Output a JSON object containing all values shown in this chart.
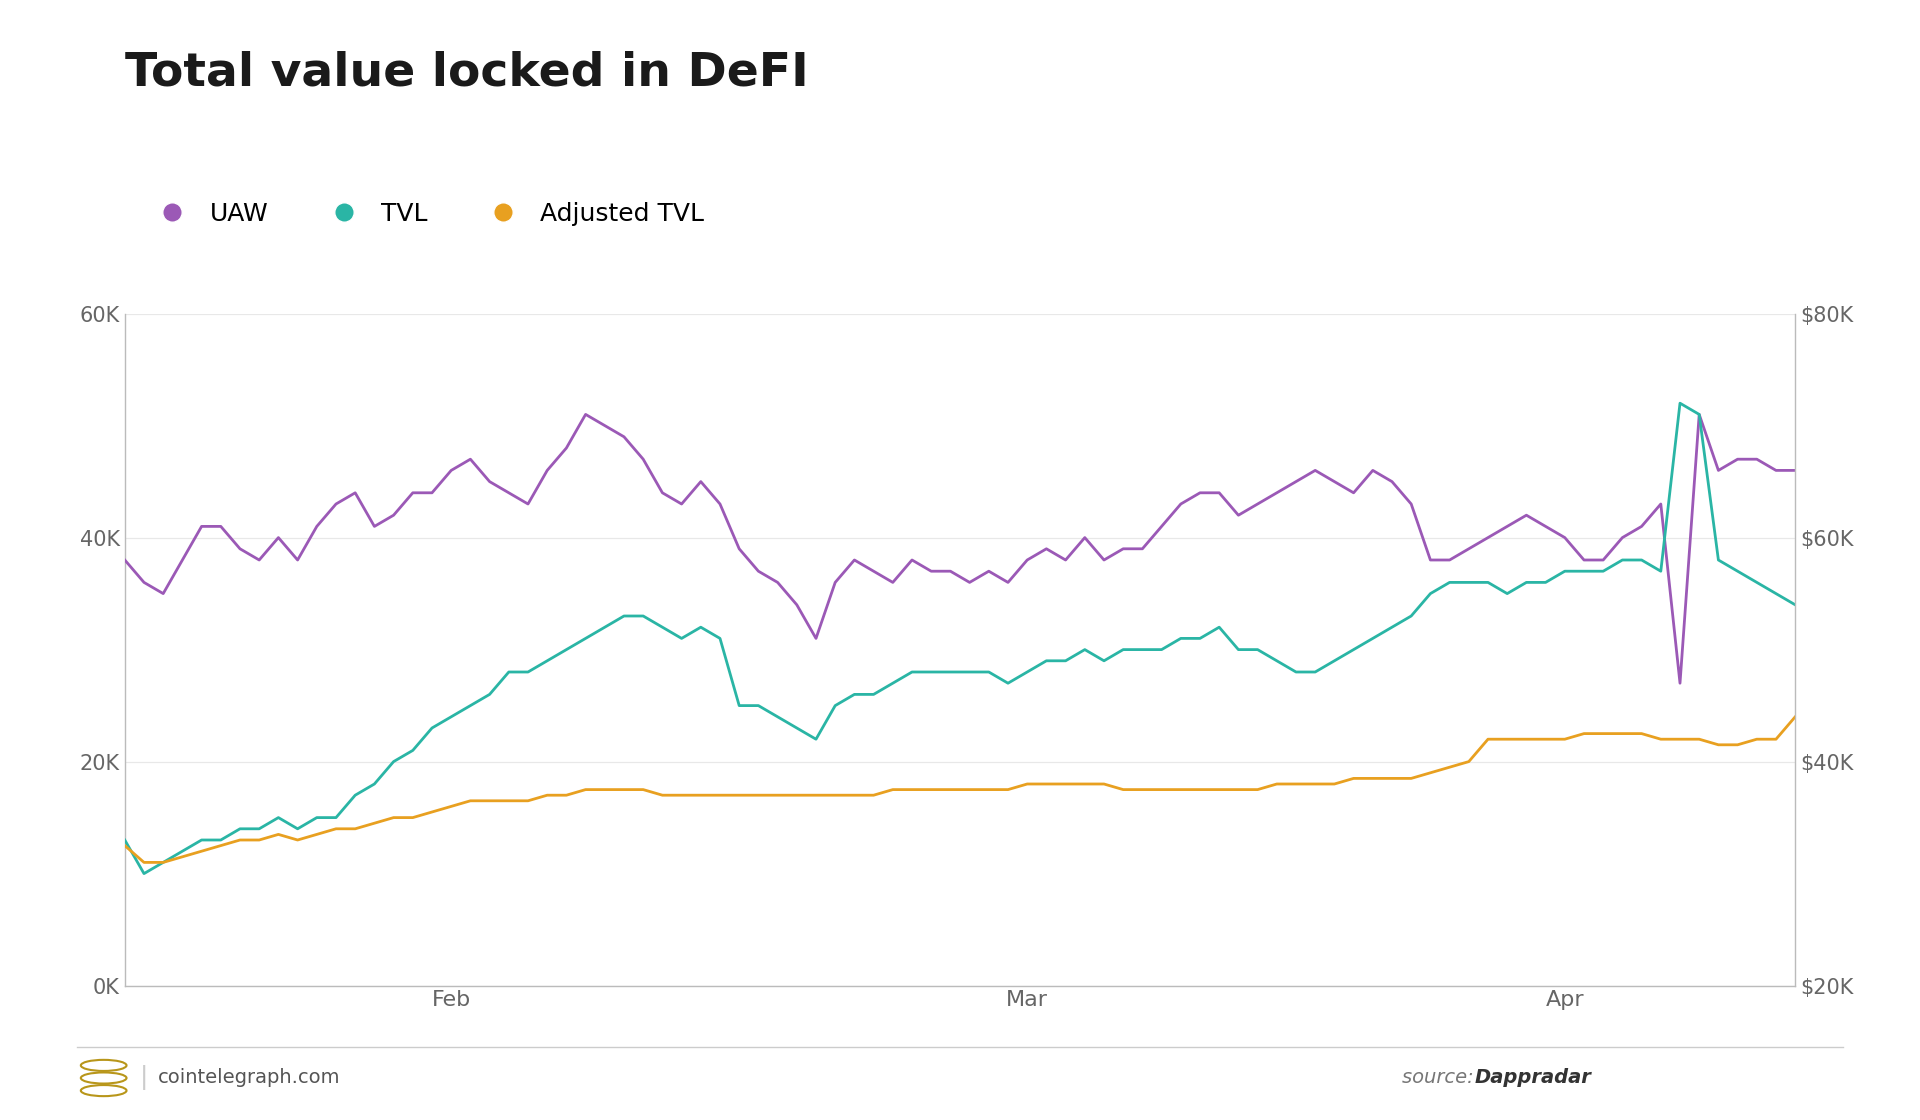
{
  "title": "Total value locked in DeFI",
  "title_fontsize": 34,
  "background_color": "#ffffff",
  "legend_labels": [
    "UAW",
    "TVL",
    "Adjusted TVL"
  ],
  "legend_colors": [
    "#9b59b6",
    "#2ab5a5",
    "#e8a020"
  ],
  "uaw_color": "#9b59b6",
  "tvl_color": "#2ab5a5",
  "adj_tvl_color": "#e8a020",
  "line_width": 2.0,
  "ylim_left": [
    0,
    60000
  ],
  "ylim_right": [
    20000,
    80000
  ],
  "yticks_left": [
    0,
    20000,
    40000,
    60000
  ],
  "ytick_labels_left": [
    "0K",
    "20K",
    "40K",
    "60K"
  ],
  "yticks_right": [
    20000,
    40000,
    60000,
    80000
  ],
  "ytick_labels_right": [
    "$20K",
    "$40K",
    "$60K",
    "$80K"
  ],
  "source_bold": "Dappradar",
  "footer_left": "cointelegraph.com",
  "x_tick_positions": [
    17,
    47,
    75
  ],
  "x_tick_labels": [
    "Feb",
    "Mar",
    "Apr"
  ],
  "uaw": [
    38000,
    36000,
    35000,
    38000,
    41000,
    41000,
    39000,
    38000,
    40000,
    38000,
    41000,
    43000,
    44000,
    41000,
    42000,
    44000,
    44000,
    46000,
    47000,
    45000,
    44000,
    43000,
    46000,
    48000,
    51000,
    50000,
    49000,
    47000,
    44000,
    43000,
    45000,
    43000,
    39000,
    37000,
    36000,
    34000,
    31000,
    36000,
    38000,
    37000,
    36000,
    38000,
    37000,
    37000,
    36000,
    37000,
    36000,
    38000,
    39000,
    38000,
    40000,
    38000,
    39000,
    39000,
    41000,
    43000,
    44000,
    44000,
    42000,
    43000,
    44000,
    45000,
    46000,
    45000,
    44000,
    46000,
    45000,
    43000,
    38000,
    38000,
    39000,
    40000,
    41000,
    42000,
    41000,
    40000,
    38000,
    38000,
    40000,
    41000,
    43000,
    27000,
    51000,
    46000,
    47000,
    47000,
    46000,
    46000
  ],
  "tvl": [
    13000,
    10000,
    11000,
    12000,
    13000,
    13000,
    14000,
    14000,
    15000,
    14000,
    15000,
    15000,
    17000,
    18000,
    20000,
    21000,
    23000,
    24000,
    25000,
    26000,
    28000,
    28000,
    29000,
    30000,
    31000,
    32000,
    33000,
    33000,
    32000,
    31000,
    32000,
    31000,
    25000,
    25000,
    24000,
    23000,
    22000,
    25000,
    26000,
    26000,
    27000,
    28000,
    28000,
    28000,
    28000,
    28000,
    27000,
    28000,
    29000,
    29000,
    30000,
    29000,
    30000,
    30000,
    30000,
    31000,
    31000,
    32000,
    30000,
    30000,
    29000,
    28000,
    28000,
    29000,
    30000,
    31000,
    32000,
    33000,
    35000,
    36000,
    36000,
    36000,
    35000,
    36000,
    36000,
    37000,
    37000,
    37000,
    38000,
    38000,
    37000,
    52000,
    51000,
    38000,
    37000,
    36000,
    35000,
    34000
  ],
  "adj_tvl": [
    12500,
    11000,
    11000,
    11500,
    12000,
    12500,
    13000,
    13000,
    13500,
    13000,
    13500,
    14000,
    14000,
    14500,
    15000,
    15000,
    15500,
    16000,
    16500,
    16500,
    16500,
    16500,
    17000,
    17000,
    17500,
    17500,
    17500,
    17500,
    17000,
    17000,
    17000,
    17000,
    17000,
    17000,
    17000,
    17000,
    17000,
    17000,
    17000,
    17000,
    17500,
    17500,
    17500,
    17500,
    17500,
    17500,
    17500,
    18000,
    18000,
    18000,
    18000,
    18000,
    17500,
    17500,
    17500,
    17500,
    17500,
    17500,
    17500,
    17500,
    18000,
    18000,
    18000,
    18000,
    18500,
    18500,
    18500,
    18500,
    19000,
    19500,
    20000,
    22000,
    22000,
    22000,
    22000,
    22000,
    22500,
    22500,
    22500,
    22500,
    22000,
    22000,
    22000,
    21500,
    21500,
    22000,
    22000,
    24000
  ],
  "num_points": 88
}
